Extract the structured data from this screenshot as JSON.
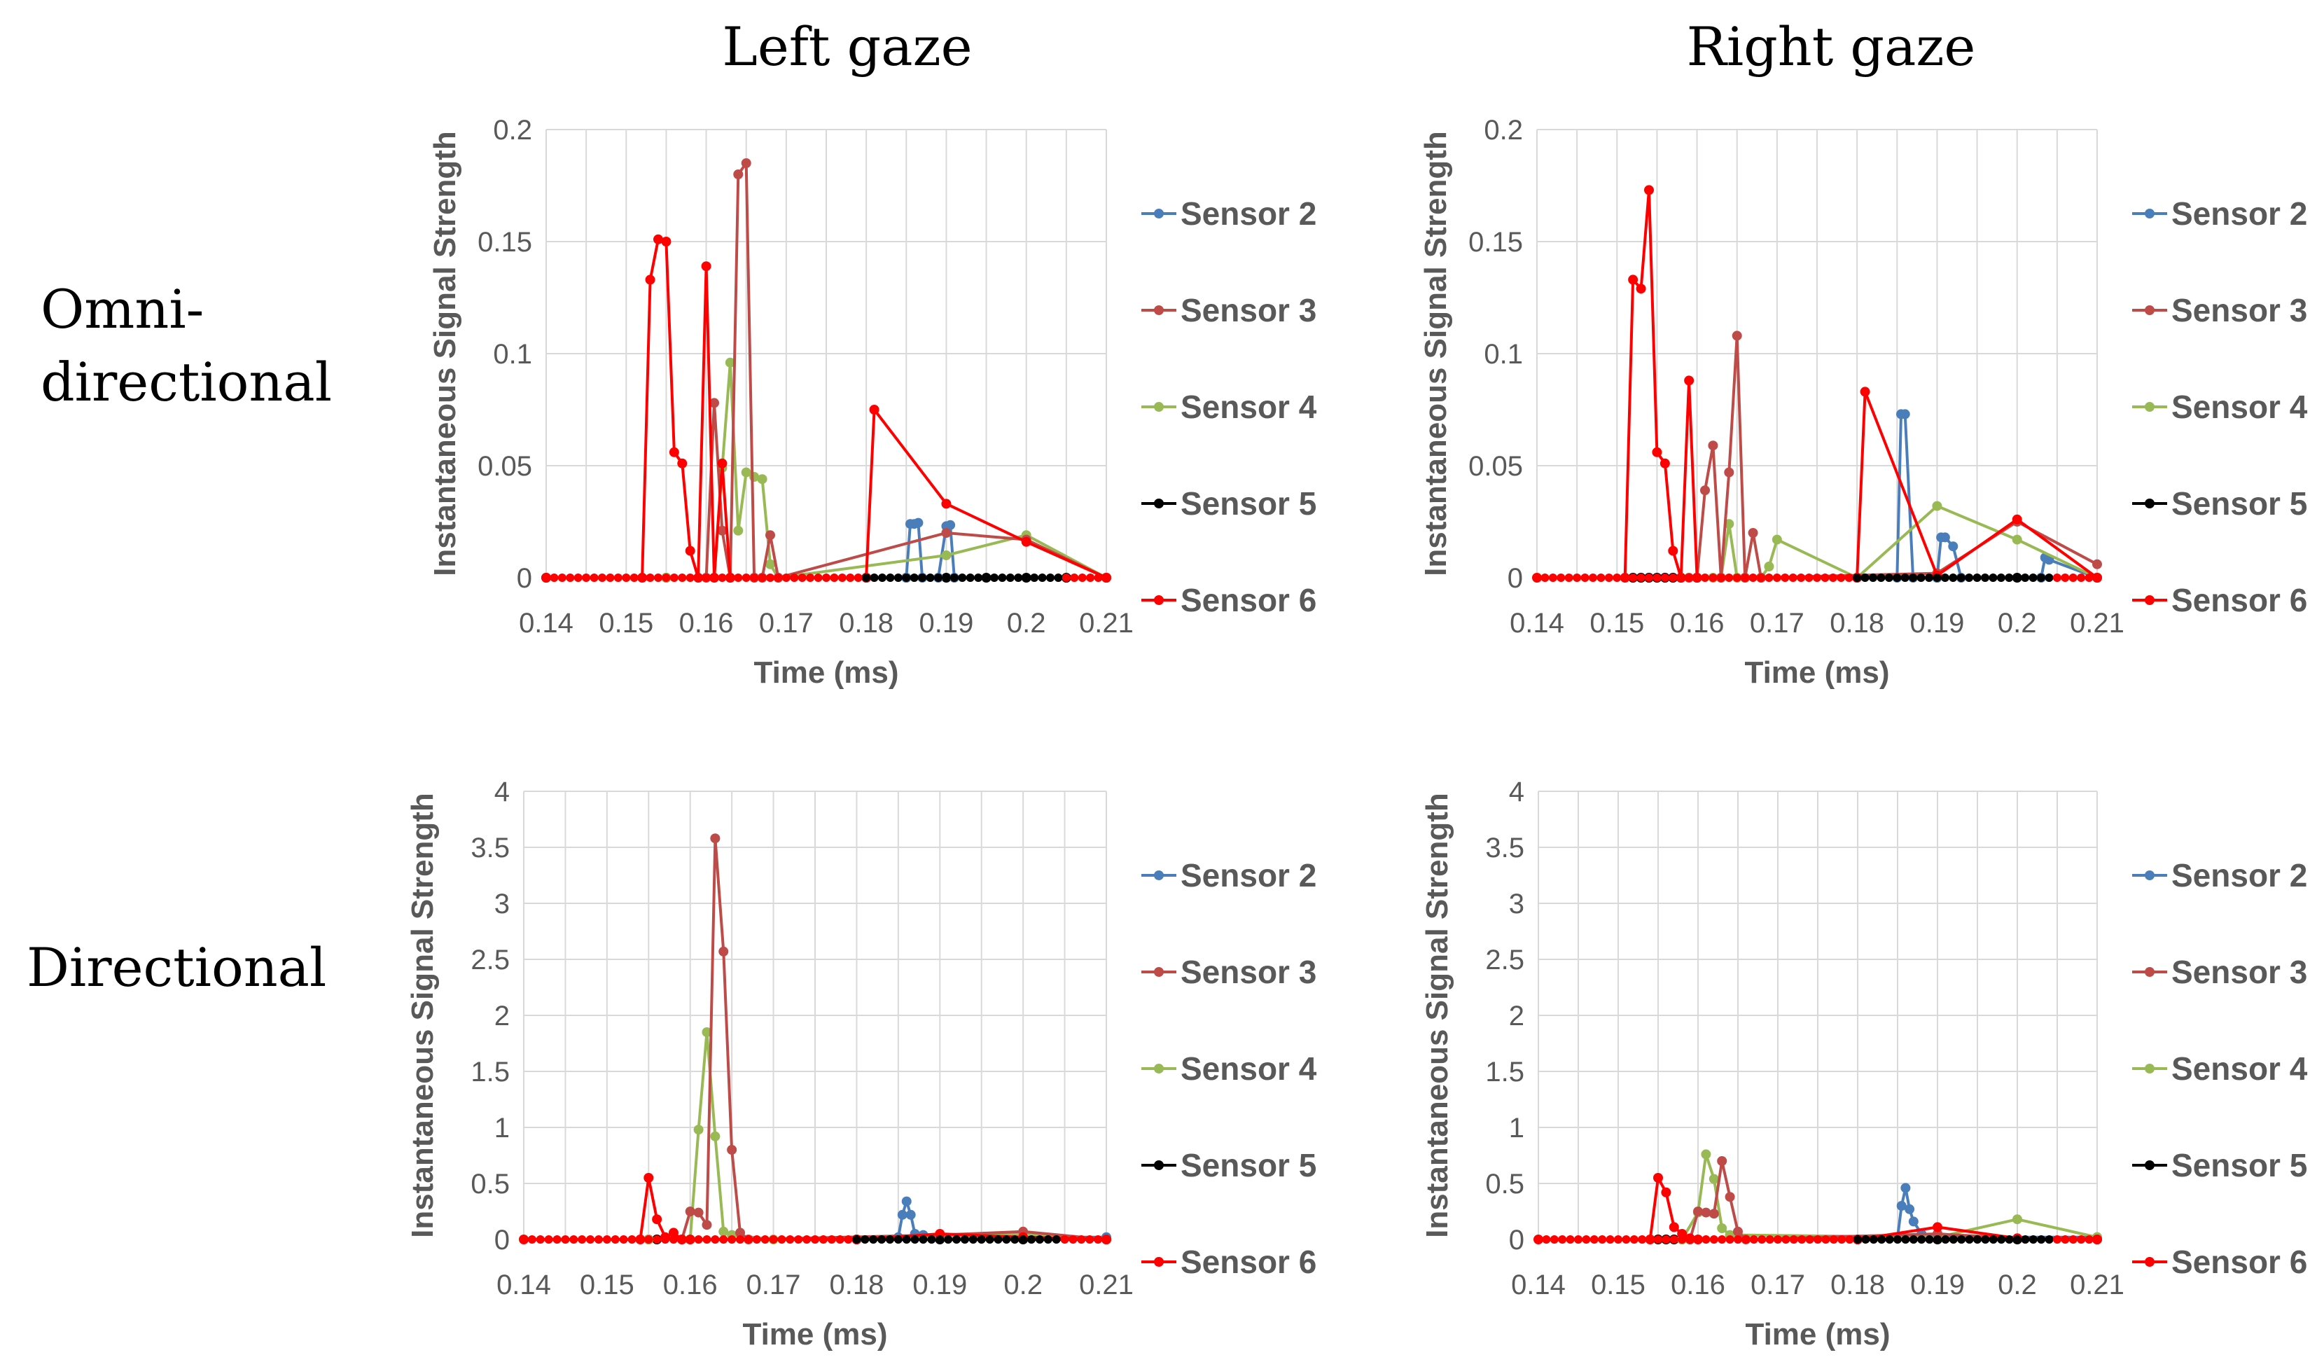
{
  "headers": {
    "left": "Left gaze",
    "right": "Right gaze",
    "row1_line1": "Omni-",
    "row1_line2": "directional",
    "row2": "Directional"
  },
  "colors": {
    "Sensor 2": "#4a7ebb",
    "Sensor 3": "#be4b48",
    "Sensor 4": "#98b954",
    "Sensor 5": "#000000",
    "Sensor 6": "#ff0000",
    "grid": "#d9d9d9",
    "tick": "#595959"
  },
  "chart_data": [
    {
      "type": "line",
      "title": "Left gaze / Omni-directional",
      "xlabel": "Time (ms)",
      "ylabel": "Instantaneous Signal Strength",
      "xlim": [
        0.14,
        0.21
      ],
      "ylim": [
        0,
        0.2
      ],
      "xticks": [
        0.14,
        0.15,
        0.16,
        0.17,
        0.18,
        0.19,
        0.2,
        0.21
      ],
      "yticks": [
        0,
        0.05,
        0.1,
        0.15,
        0.2
      ],
      "xtick_labels": [
        "0.14",
        "0.15",
        "0.16",
        "0.17",
        "0.18",
        "0.19",
        "0.2",
        "0.21"
      ],
      "ytick_labels": [
        "0",
        "0.05",
        "0.1",
        "0.15",
        "0.2"
      ],
      "legend": [
        "Sensor 2",
        "Sensor 3",
        "Sensor 4",
        "Sensor 5",
        "Sensor 6"
      ],
      "series": [
        {
          "name": "Sensor 5",
          "x": [
            0.14,
            0.155,
            0.18,
            0.185,
            0.19,
            0.195,
            0.2,
            0.205,
            0.21
          ],
          "y": [
            0,
            0,
            0,
            0,
            0,
            0,
            0,
            0,
            0
          ]
        },
        {
          "name": "Sensor 2",
          "x": [
            0.18,
            0.185,
            0.1855,
            0.186,
            0.1865,
            0.187,
            0.189,
            0.19,
            0.1905,
            0.191,
            0.21
          ],
          "y": [
            0,
            0,
            0.024,
            0.024,
            0.0245,
            0,
            0,
            0.023,
            0.0235,
            0,
            0
          ]
        },
        {
          "name": "Sensor 4",
          "x": [
            0.155,
            0.161,
            0.162,
            0.163,
            0.164,
            0.165,
            0.166,
            0.167,
            0.168,
            0.169,
            0.19,
            0.2,
            0.21
          ],
          "y": [
            0,
            0,
            0.049,
            0.096,
            0.021,
            0.047,
            0.045,
            0.044,
            0.006,
            0,
            0.01,
            0.019,
            0
          ]
        },
        {
          "name": "Sensor 3",
          "x": [
            0.16,
            0.161,
            0.162,
            0.163,
            0.164,
            0.165,
            0.166,
            0.167,
            0.168,
            0.169,
            0.19,
            0.2,
            0.21
          ],
          "y": [
            0,
            0.078,
            0.021,
            0,
            0.18,
            0.185,
            0,
            0,
            0.019,
            0,
            0.02,
            0.017,
            0
          ]
        },
        {
          "name": "Sensor 6",
          "x": [
            0.14,
            0.152,
            0.153,
            0.154,
            0.155,
            0.156,
            0.157,
            0.158,
            0.159,
            0.16,
            0.161,
            0.162,
            0.163,
            0.18,
            0.181,
            0.19,
            0.2,
            0.21
          ],
          "y": [
            0,
            0,
            0.133,
            0.151,
            0.15,
            0.056,
            0.051,
            0.012,
            0,
            0.139,
            0,
            0.051,
            0,
            0,
            0.075,
            0.033,
            0.016,
            0
          ]
        }
      ]
    },
    {
      "type": "line",
      "title": "Right gaze / Omni-directional",
      "xlabel": "Time (ms)",
      "ylabel": "Instantaneous Signal Strength",
      "xlim": [
        0.14,
        0.21
      ],
      "ylim": [
        0,
        0.2
      ],
      "xticks": [
        0.14,
        0.15,
        0.16,
        0.17,
        0.18,
        0.19,
        0.2,
        0.21
      ],
      "yticks": [
        0,
        0.05,
        0.1,
        0.15,
        0.2
      ],
      "xtick_labels": [
        "0.14",
        "0.15",
        "0.16",
        "0.17",
        "0.18",
        "0.19",
        "0.2",
        "0.21"
      ],
      "ytick_labels": [
        "0",
        "0.05",
        "0.1",
        "0.15",
        "0.2"
      ],
      "legend": [
        "Sensor 2",
        "Sensor 3",
        "Sensor 4",
        "Sensor 5",
        "Sensor 6"
      ],
      "series": [
        {
          "name": "Sensor 5",
          "x": [
            0.152,
            0.153,
            0.154,
            0.155,
            0.156,
            0.157,
            0.158,
            0.16,
            0.18,
            0.19,
            0.2,
            0.21
          ],
          "y": [
            0,
            0,
            0,
            0,
            0,
            0,
            0,
            0,
            0,
            0,
            0,
            0
          ]
        },
        {
          "name": "Sensor 2",
          "x": [
            0.18,
            0.185,
            0.1855,
            0.186,
            0.187,
            0.19,
            0.1905,
            0.191,
            0.192,
            0.193,
            0.203,
            0.2035,
            0.204,
            0.21
          ],
          "y": [
            0,
            0,
            0.073,
            0.073,
            0,
            0,
            0.018,
            0.018,
            0.014,
            0,
            0,
            0.009,
            0.008,
            0
          ]
        },
        {
          "name": "Sensor 4",
          "x": [
            0.162,
            0.163,
            0.164,
            0.165,
            0.166,
            0.168,
            0.169,
            0.17,
            0.18,
            0.19,
            0.2,
            0.21
          ],
          "y": [
            0,
            0,
            0.024,
            0,
            0,
            0,
            0.005,
            0.017,
            0,
            0.032,
            0.017,
            0
          ]
        },
        {
          "name": "Sensor 3",
          "x": [
            0.159,
            0.16,
            0.161,
            0.162,
            0.163,
            0.164,
            0.165,
            0.166,
            0.167,
            0.168,
            0.19,
            0.2,
            0.21
          ],
          "y": [
            0,
            0,
            0.039,
            0.059,
            0,
            0.047,
            0.108,
            0,
            0.02,
            0,
            0.002,
            0.025,
            0.006
          ]
        },
        {
          "name": "Sensor 6",
          "x": [
            0.14,
            0.151,
            0.152,
            0.153,
            0.154,
            0.155,
            0.156,
            0.157,
            0.158,
            0.159,
            0.16,
            0.18,
            0.181,
            0.19,
            0.2,
            0.21
          ],
          "y": [
            0,
            0,
            0.133,
            0.129,
            0.173,
            0.056,
            0.051,
            0.012,
            0,
            0.088,
            0,
            0,
            0.083,
            0.001,
            0.026,
            0
          ]
        }
      ]
    },
    {
      "type": "line",
      "title": "Left gaze / Directional",
      "xlabel": "Time (ms)",
      "ylabel": "Instantaneous Signal Strength",
      "xlim": [
        0.14,
        0.21
      ],
      "ylim": [
        0,
        4
      ],
      "xticks": [
        0.14,
        0.15,
        0.16,
        0.17,
        0.18,
        0.19,
        0.2,
        0.21
      ],
      "yticks": [
        0,
        0.5,
        1,
        1.5,
        2,
        2.5,
        3,
        3.5,
        4
      ],
      "xtick_labels": [
        "0.14",
        "0.15",
        "0.16",
        "0.17",
        "0.18",
        "0.19",
        "0.2",
        "0.21"
      ],
      "ytick_labels": [
        "0",
        "0.5",
        "1",
        "1.5",
        "2",
        "2.5",
        "3",
        "3.5",
        "4"
      ],
      "legend": [
        "Sensor 2",
        "Sensor 3",
        "Sensor 4",
        "Sensor 5",
        "Sensor 6"
      ],
      "series": [
        {
          "name": "Sensor 5",
          "x": [
            0.155,
            0.156,
            0.18,
            0.19,
            0.2,
            0.21
          ],
          "y": [
            0,
            0,
            0,
            0,
            0,
            0
          ]
        },
        {
          "name": "Sensor 2",
          "x": [
            0.18,
            0.185,
            0.1855,
            0.186,
            0.1865,
            0.187,
            0.188,
            0.19,
            0.2,
            0.21
          ],
          "y": [
            0,
            0.02,
            0.22,
            0.34,
            0.22,
            0.05,
            0.04,
            0.02,
            0.02,
            0.02
          ]
        },
        {
          "name": "Sensor 4",
          "x": [
            0.155,
            0.16,
            0.161,
            0.162,
            0.163,
            0.164,
            0.165,
            0.17,
            0.19,
            0.2,
            0.21
          ],
          "y": [
            0,
            0,
            0.98,
            1.85,
            0.92,
            0.07,
            0.04,
            0,
            0.02,
            0.05,
            0
          ]
        },
        {
          "name": "Sensor 3",
          "x": [
            0.159,
            0.16,
            0.161,
            0.162,
            0.163,
            0.164,
            0.165,
            0.166,
            0.167,
            0.19,
            0.2,
            0.21
          ],
          "y": [
            0,
            0.25,
            0.24,
            0.13,
            3.58,
            2.57,
            0.8,
            0.06,
            0,
            0.04,
            0.07,
            0
          ]
        },
        {
          "name": "Sensor 6",
          "x": [
            0.14,
            0.154,
            0.155,
            0.156,
            0.157,
            0.158,
            0.159,
            0.16,
            0.18,
            0.19,
            0.2,
            0.21
          ],
          "y": [
            0,
            0,
            0.55,
            0.18,
            0.02,
            0.06,
            0,
            0,
            0,
            0.05,
            0.02,
            0
          ]
        }
      ]
    },
    {
      "type": "line",
      "title": "Right gaze / Directional",
      "xlabel": "Time (ms)",
      "ylabel": "Instantaneous Signal Strength",
      "xlim": [
        0.14,
        0.21
      ],
      "ylim": [
        0,
        4
      ],
      "xticks": [
        0.14,
        0.15,
        0.16,
        0.17,
        0.18,
        0.19,
        0.2,
        0.21
      ],
      "yticks": [
        0,
        0.5,
        1,
        1.5,
        2,
        2.5,
        3,
        3.5,
        4
      ],
      "xtick_labels": [
        "0.14",
        "0.15",
        "0.16",
        "0.17",
        "0.18",
        "0.19",
        "0.2",
        "0.21"
      ],
      "ytick_labels": [
        "0",
        "0.5",
        "1",
        "1.5",
        "2",
        "2.5",
        "3",
        "3.5",
        "4"
      ],
      "legend": [
        "Sensor 2",
        "Sensor 3",
        "Sensor 4",
        "Sensor 5",
        "Sensor 6"
      ],
      "series": [
        {
          "name": "Sensor 5",
          "x": [
            0.155,
            0.156,
            0.157,
            0.158,
            0.159,
            0.18,
            0.19,
            0.2,
            0.21
          ],
          "y": [
            0,
            0,
            0,
            0,
            0,
            0,
            0,
            0,
            0
          ]
        },
        {
          "name": "Sensor 2",
          "x": [
            0.18,
            0.185,
            0.1855,
            0.186,
            0.1865,
            0.187,
            0.188,
            0.19,
            0.21
          ],
          "y": [
            0,
            0.02,
            0.3,
            0.46,
            0.27,
            0.16,
            0.05,
            0.02,
            0.02
          ]
        },
        {
          "name": "Sensor 4",
          "x": [
            0.158,
            0.16,
            0.161,
            0.162,
            0.163,
            0.164,
            0.165,
            0.19,
            0.2,
            0.21
          ],
          "y": [
            0,
            0.24,
            0.76,
            0.54,
            0.1,
            0.04,
            0.04,
            0.02,
            0.18,
            0.02
          ]
        },
        {
          "name": "Sensor 3",
          "x": [
            0.159,
            0.16,
            0.161,
            0.162,
            0.163,
            0.164,
            0.165,
            0.166,
            0.19,
            0.2,
            0.21
          ],
          "y": [
            0,
            0.25,
            0.24,
            0.23,
            0.7,
            0.38,
            0.07,
            0,
            0.05,
            0.01,
            0
          ]
        },
        {
          "name": "Sensor 6",
          "x": [
            0.14,
            0.154,
            0.155,
            0.156,
            0.157,
            0.158,
            0.159,
            0.16,
            0.18,
            0.19,
            0.2,
            0.21
          ],
          "y": [
            0,
            0,
            0.55,
            0.42,
            0.11,
            0.05,
            0.01,
            0,
            0,
            0.11,
            0.01,
            0
          ]
        }
      ]
    }
  ]
}
